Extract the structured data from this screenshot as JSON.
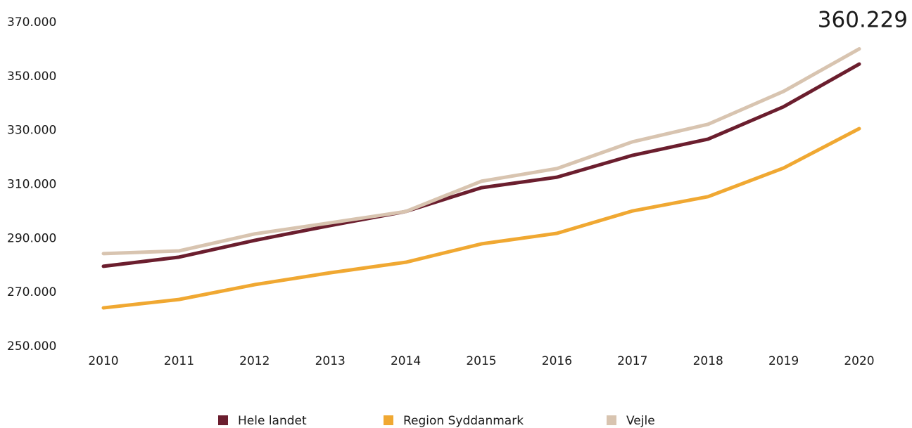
{
  "chart_data": {
    "type": "line",
    "annotation": "360.229",
    "categories": [
      "2010",
      "2011",
      "2012",
      "2013",
      "2014",
      "2015",
      "2016",
      "2017",
      "2018",
      "2019",
      "2020"
    ],
    "series": [
      {
        "name": "Hele landet",
        "color": "#6b1e2e",
        "values": [
          279700,
          283100,
          289300,
          294800,
          300000,
          308800,
          312700,
          320800,
          326800,
          338800,
          354600
        ]
      },
      {
        "name": "Region Syddanmark",
        "color": "#f0a832",
        "values": [
          264300,
          267400,
          272900,
          277300,
          281200,
          288000,
          291900,
          300200,
          305500,
          316100,
          330700
        ]
      },
      {
        "name": "Vejle",
        "color": "#d8c4b0",
        "values": [
          284400,
          285400,
          291700,
          295800,
          300000,
          311200,
          315900,
          325800,
          332300,
          344500,
          360229
        ]
      }
    ],
    "ylim": [
      250000,
      370000
    ],
    "yticks": [
      {
        "value": 250000,
        "label": "250.000"
      },
      {
        "value": 270000,
        "label": "270.000"
      },
      {
        "value": 290000,
        "label": "290.000"
      },
      {
        "value": 310000,
        "label": "310.000"
      },
      {
        "value": 330000,
        "label": "330.000"
      },
      {
        "value": 350000,
        "label": "350.000"
      },
      {
        "value": 370000,
        "label": "370.000"
      }
    ],
    "grid": false,
    "legend": "bottom"
  }
}
